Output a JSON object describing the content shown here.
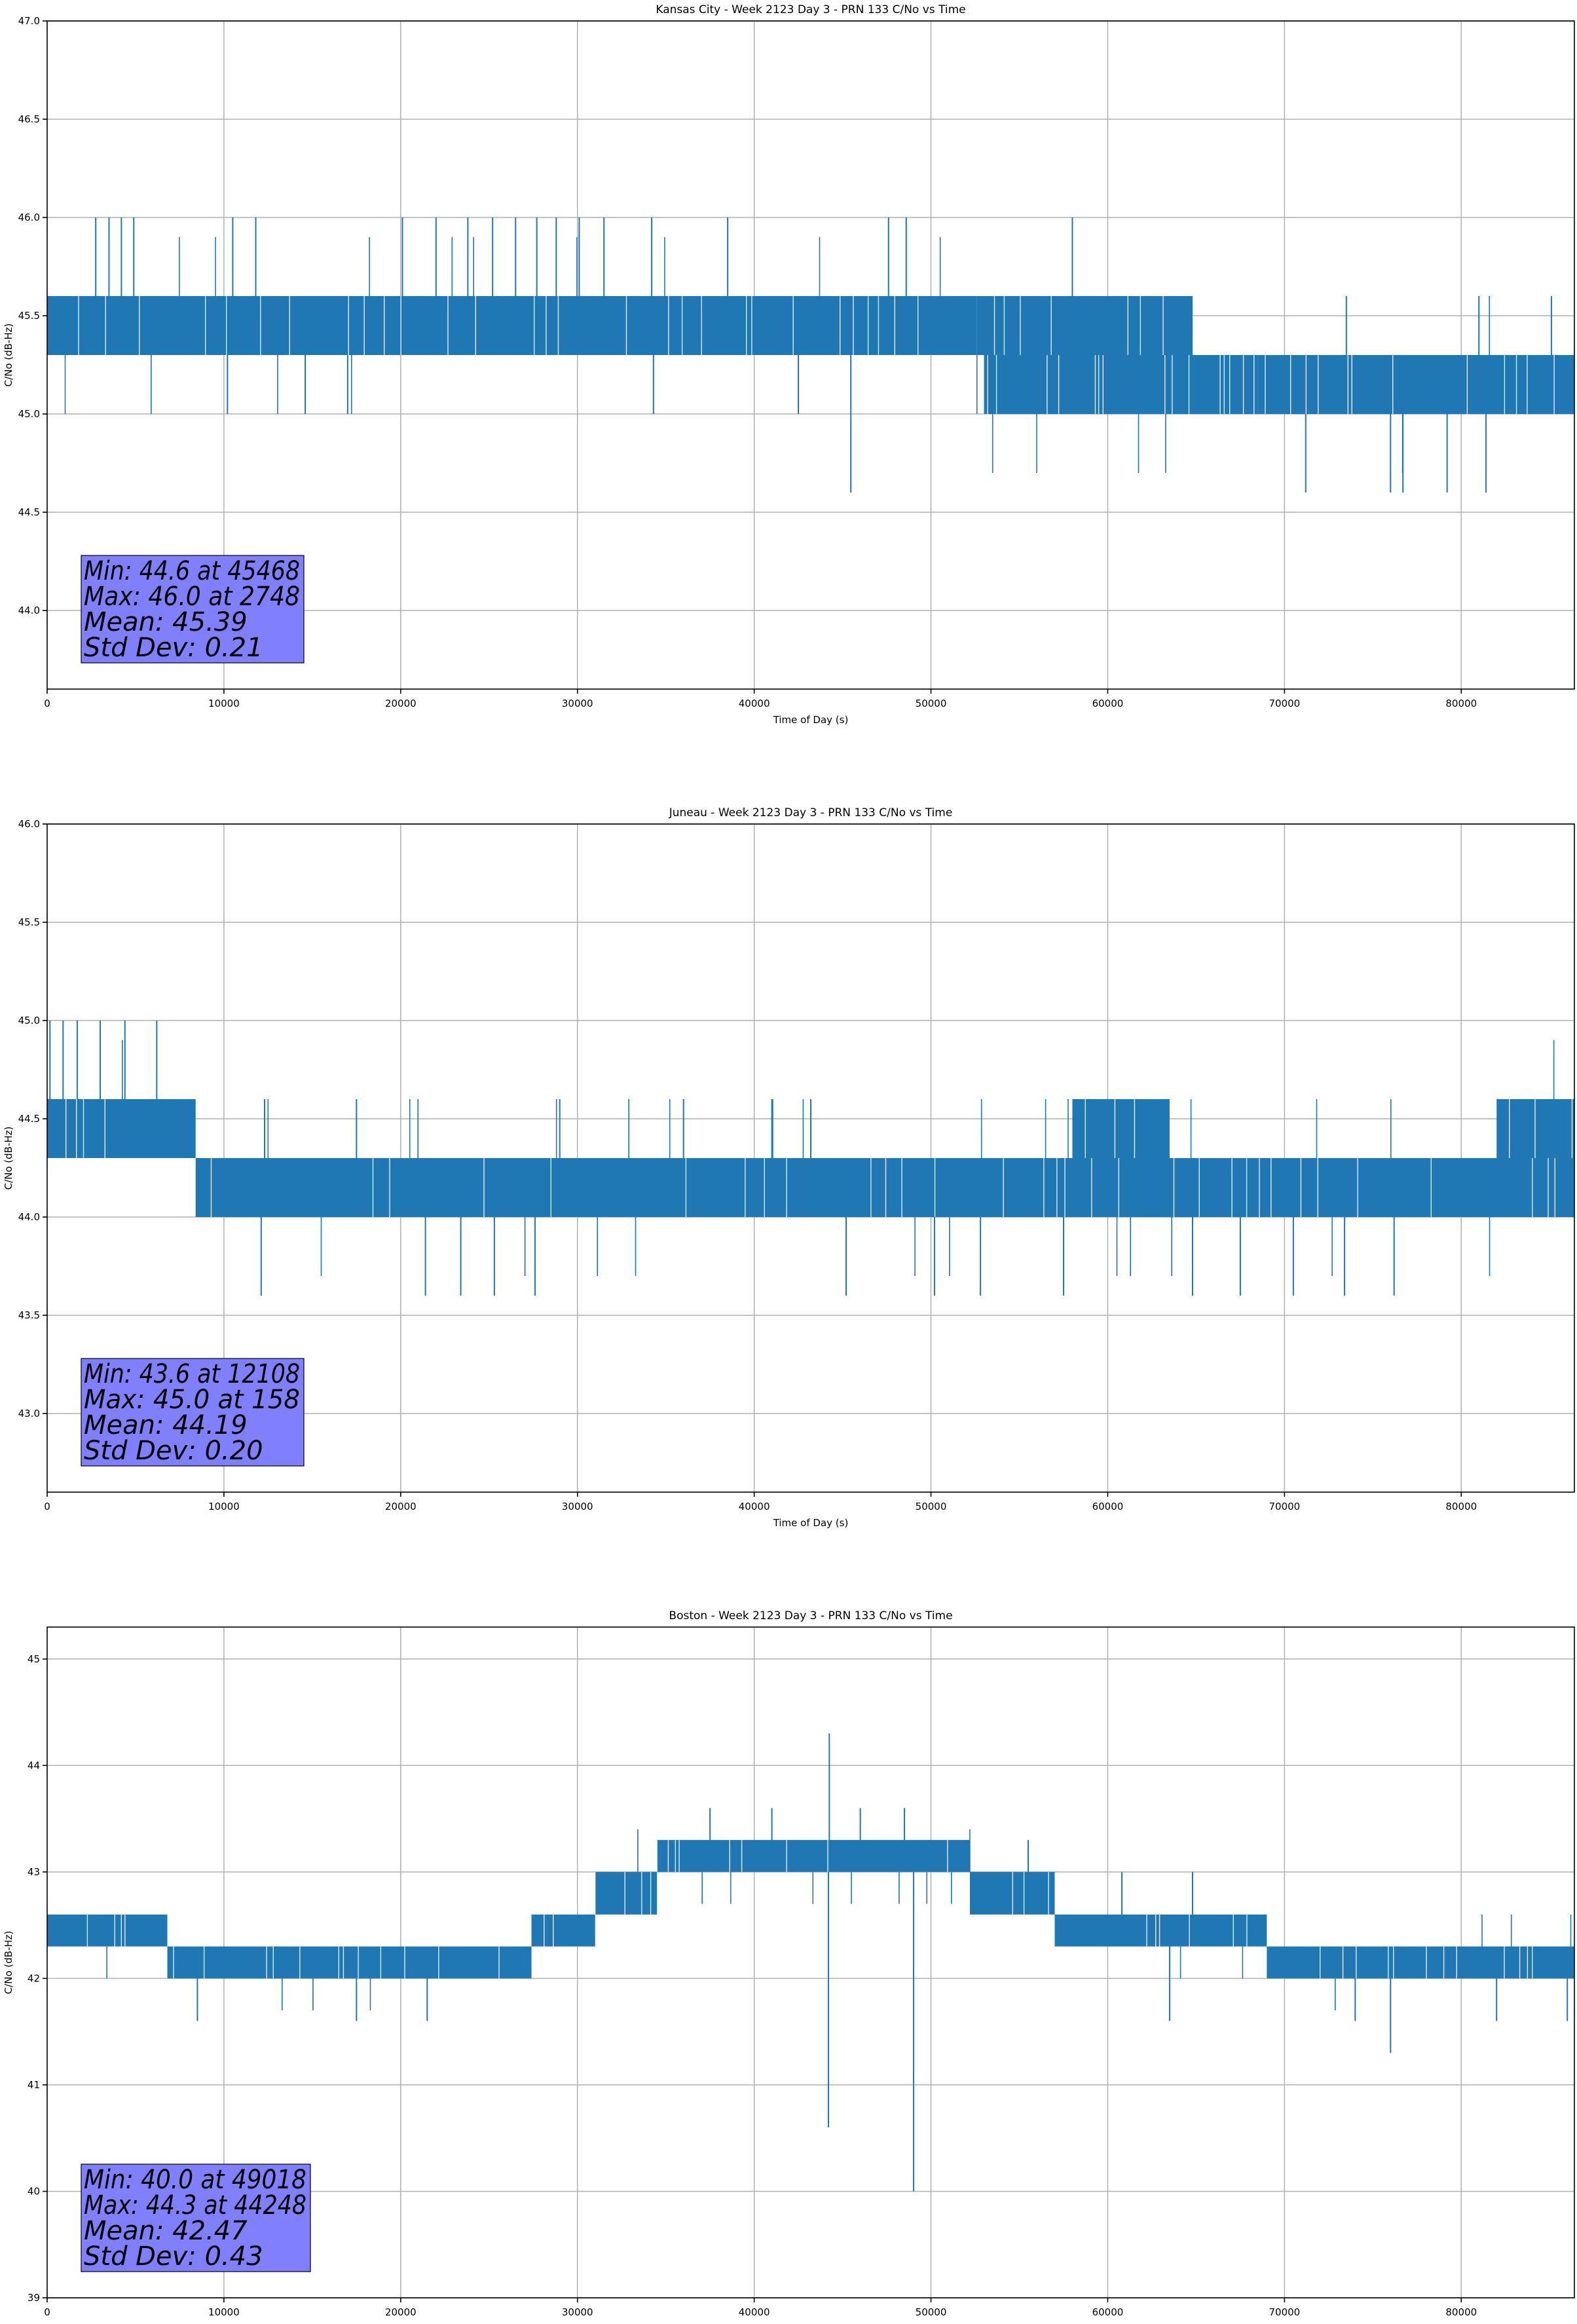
{
  "chart_data": [
    {
      "type": "line",
      "title": "Kansas City - Week 2123 Day 3 - PRN 133 C/No vs Time",
      "xlabel": "Time of Day (s)",
      "ylabel": "C/No (dB-Hz)",
      "xlim": [
        0,
        86400
      ],
      "ylim": [
        43.6,
        47.0
      ],
      "xticks": [
        0,
        10000,
        20000,
        30000,
        40000,
        50000,
        60000,
        70000,
        80000
      ],
      "xtick_labels": [
        "0",
        "10000",
        "20000",
        "30000",
        "40000",
        "50000",
        "60000",
        "70000",
        "80000"
      ],
      "yticks": [
        44.0,
        44.5,
        45.0,
        45.5,
        46.0,
        46.5,
        47.0
      ],
      "ytick_labels": [
        "44.0",
        "44.5",
        "45.0",
        "45.5",
        "46.0",
        "46.5",
        "47.0"
      ],
      "grid": true,
      "line_color": "#1f77b4",
      "stats_box": [
        "Min: 44.6 at 45468",
        "Max: 46.0 at 2748",
        "Mean: 45.39",
        "Std Dev: 0.21"
      ],
      "series": [
        {
          "name": "C/No",
          "bands": [
            {
              "x": [
                0,
                52600
              ],
              "y": [
                45.3,
                45.6
              ]
            },
            {
              "x": [
                52600,
                64800
              ],
              "y": [
                45.3,
                45.6
              ]
            },
            {
              "x": [
                53000,
                68500
              ],
              "y": [
                45.0,
                45.3
              ]
            },
            {
              "x": [
                68500,
                86400
              ],
              "y": [
                45.0,
                45.3
              ]
            }
          ],
          "spikes": [
            {
              "x": 2748,
              "y": 46.0
            },
            {
              "x": 3500,
              "y": 46.0
            },
            {
              "x": 4200,
              "y": 46.0
            },
            {
              "x": 4900,
              "y": 46.0
            },
            {
              "x": 10500,
              "y": 46.0
            },
            {
              "x": 11800,
              "y": 46.0
            },
            {
              "x": 20100,
              "y": 46.0
            },
            {
              "x": 22000,
              "y": 46.0
            },
            {
              "x": 23800,
              "y": 46.0
            },
            {
              "x": 25200,
              "y": 46.0
            },
            {
              "x": 26500,
              "y": 46.0
            },
            {
              "x": 27700,
              "y": 46.0
            },
            {
              "x": 28800,
              "y": 46.0
            },
            {
              "x": 30100,
              "y": 46.0
            },
            {
              "x": 31500,
              "y": 46.0
            },
            {
              "x": 34200,
              "y": 46.0
            },
            {
              "x": 38500,
              "y": 46.0
            },
            {
              "x": 47600,
              "y": 46.0
            },
            {
              "x": 48600,
              "y": 46.0
            },
            {
              "x": 58000,
              "y": 46.0
            },
            {
              "x": 10200,
              "y": 45.0
            },
            {
              "x": 14600,
              "y": 45.0
            },
            {
              "x": 17000,
              "y": 45.0
            },
            {
              "x": 34300,
              "y": 45.0
            },
            {
              "x": 42500,
              "y": 45.0
            },
            {
              "x": 45468,
              "y": 44.6
            },
            {
              "x": 71200,
              "y": 44.6
            },
            {
              "x": 76000,
              "y": 44.6
            },
            {
              "x": 76700,
              "y": 44.6
            },
            {
              "x": 79200,
              "y": 44.6
            },
            {
              "x": 81400,
              "y": 44.6
            },
            {
              "x": 73500,
              "y": 45.6
            },
            {
              "x": 81000,
              "y": 45.6
            },
            {
              "x": 85100,
              "y": 45.6
            }
          ]
        }
      ]
    },
    {
      "type": "line",
      "title": "Juneau - Week 2123 Day 3 - PRN 133 C/No vs Time",
      "xlabel": "Time of Day (s)",
      "ylabel": "C/No (dB-Hz)",
      "xlim": [
        0,
        86400
      ],
      "ylim": [
        42.6,
        46.0
      ],
      "xticks": [
        0,
        10000,
        20000,
        30000,
        40000,
        50000,
        60000,
        70000,
        80000
      ],
      "xtick_labels": [
        "0",
        "10000",
        "20000",
        "30000",
        "40000",
        "50000",
        "60000",
        "70000",
        "80000"
      ],
      "yticks": [
        43.0,
        43.5,
        44.0,
        44.5,
        45.0,
        45.5,
        46.0
      ],
      "ytick_labels": [
        "43.0",
        "43.5",
        "44.0",
        "44.5",
        "45.0",
        "45.5",
        "46.0"
      ],
      "grid": true,
      "line_color": "#1f77b4",
      "stats_box": [
        "Min: 43.6 at 12108",
        "Max: 45.0 at 158",
        "Mean: 44.19",
        "Std Dev: 0.20"
      ],
      "series": [
        {
          "name": "C/No",
          "bands": [
            {
              "x": [
                0,
                8400
              ],
              "y": [
                44.3,
                44.6
              ]
            },
            {
              "x": [
                8400,
                86400
              ],
              "y": [
                44.0,
                44.3
              ]
            },
            {
              "x": [
                58000,
                63500
              ],
              "y": [
                44.3,
                44.6
              ]
            },
            {
              "x": [
                82000,
                86400
              ],
              "y": [
                44.3,
                44.6
              ]
            }
          ],
          "spikes": [
            {
              "x": 158,
              "y": 45.0
            },
            {
              "x": 900,
              "y": 45.0
            },
            {
              "x": 1700,
              "y": 45.0
            },
            {
              "x": 3000,
              "y": 45.0
            },
            {
              "x": 4400,
              "y": 45.0
            },
            {
              "x": 6200,
              "y": 45.0
            },
            {
              "x": 12108,
              "y": 43.6
            },
            {
              "x": 21400,
              "y": 43.6
            },
            {
              "x": 23400,
              "y": 43.6
            },
            {
              "x": 25300,
              "y": 43.6
            },
            {
              "x": 27600,
              "y": 43.6
            },
            {
              "x": 50200,
              "y": 43.6
            },
            {
              "x": 52800,
              "y": 43.6
            },
            {
              "x": 57500,
              "y": 43.6
            },
            {
              "x": 64800,
              "y": 43.6
            },
            {
              "x": 67500,
              "y": 43.6
            },
            {
              "x": 70500,
              "y": 43.6
            },
            {
              "x": 73400,
              "y": 43.6
            },
            {
              "x": 76200,
              "y": 43.6
            },
            {
              "x": 45200,
              "y": 43.6
            },
            {
              "x": 12300,
              "y": 44.6
            },
            {
              "x": 17500,
              "y": 44.6
            },
            {
              "x": 29000,
              "y": 44.6
            },
            {
              "x": 36000,
              "y": 44.6
            },
            {
              "x": 41000,
              "y": 44.6
            },
            {
              "x": 43200,
              "y": 44.6
            }
          ]
        }
      ]
    },
    {
      "type": "line",
      "title": "Boston - Week 2123 Day 3 - PRN 133 C/No vs Time",
      "xlabel": "Time of Day (s)",
      "ylabel": "C/No (dB-Hz)",
      "xlim": [
        0,
        86400
      ],
      "ylim": [
        39.0,
        45.3
      ],
      "xticks": [
        0,
        10000,
        20000,
        30000,
        40000,
        50000,
        60000,
        70000,
        80000
      ],
      "xtick_labels": [
        "0",
        "10000",
        "20000",
        "30000",
        "40000",
        "50000",
        "60000",
        "70000",
        "80000"
      ],
      "yticks": [
        39,
        40,
        41,
        42,
        43,
        44,
        45
      ],
      "ytick_labels": [
        "39",
        "40",
        "41",
        "42",
        "43",
        "44",
        "45"
      ],
      "grid": true,
      "line_color": "#1f77b4",
      "stats_box": [
        "Min: 40.0 at 49018",
        "Max: 44.3 at 44248",
        "Mean: 42.47",
        "Std Dev: 0.43"
      ],
      "series": [
        {
          "name": "C/No",
          "bands": [
            {
              "x": [
                0,
                6800
              ],
              "y": [
                42.3,
                42.6
              ]
            },
            {
              "x": [
                6800,
                27400
              ],
              "y": [
                42.0,
                42.3
              ]
            },
            {
              "x": [
                27400,
                31000
              ],
              "y": [
                42.3,
                42.6
              ]
            },
            {
              "x": [
                31000,
                34500
              ],
              "y": [
                42.6,
                43.0
              ]
            },
            {
              "x": [
                34500,
                52200
              ],
              "y": [
                43.0,
                43.3
              ]
            },
            {
              "x": [
                52200,
                57000
              ],
              "y": [
                42.6,
                43.0
              ]
            },
            {
              "x": [
                57000,
                69000
              ],
              "y": [
                42.3,
                42.6
              ]
            },
            {
              "x": [
                69000,
                86400
              ],
              "y": [
                42.0,
                42.3
              ]
            }
          ],
          "spikes": [
            {
              "x": 44248,
              "y": 44.3
            },
            {
              "x": 44200,
              "y": 40.6
            },
            {
              "x": 49018,
              "y": 40.0
            },
            {
              "x": 76000,
              "y": 41.3
            },
            {
              "x": 8500,
              "y": 41.6
            },
            {
              "x": 17500,
              "y": 41.6
            },
            {
              "x": 21500,
              "y": 41.6
            },
            {
              "x": 63500,
              "y": 41.6
            },
            {
              "x": 74000,
              "y": 41.6
            },
            {
              "x": 82000,
              "y": 41.6
            },
            {
              "x": 86000,
              "y": 41.6
            },
            {
              "x": 37500,
              "y": 43.6
            },
            {
              "x": 41000,
              "y": 43.6
            },
            {
              "x": 46000,
              "y": 43.6
            },
            {
              "x": 48500,
              "y": 43.6
            },
            {
              "x": 55500,
              "y": 43.3
            },
            {
              "x": 60800,
              "y": 43.0
            },
            {
              "x": 64800,
              "y": 43.0
            },
            {
              "x": 27500,
              "y": 42.6
            }
          ]
        }
      ]
    }
  ]
}
